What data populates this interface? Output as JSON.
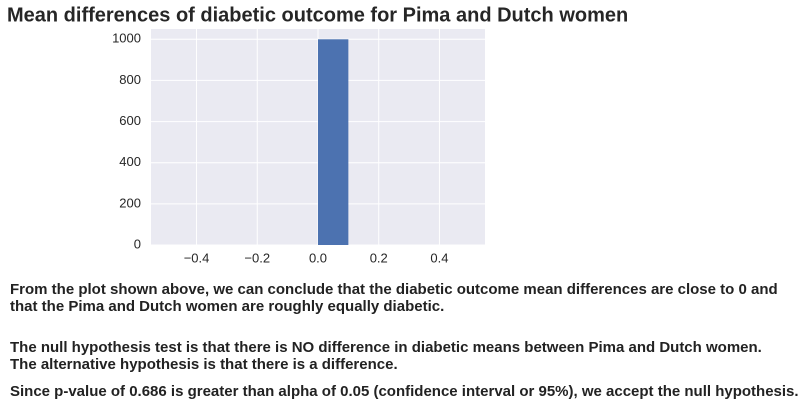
{
  "chart_data": {
    "type": "histogram",
    "title": "Mean differences of diabetic outcome for Pima and Dutch women",
    "bins": [
      -0.5,
      -0.4,
      -0.3,
      -0.2,
      -0.1,
      0.0,
      0.1,
      0.2,
      0.3,
      0.4,
      0.5
    ],
    "counts": [
      0,
      0,
      0,
      0,
      0,
      1000,
      0,
      0,
      0,
      0
    ],
    "color": "#4c72b0",
    "xlim": [
      -0.55,
      0.55
    ],
    "ylim": [
      0,
      1050
    ],
    "xticks": [
      {
        "value": -0.4,
        "label": "−0.4"
      },
      {
        "value": -0.2,
        "label": "−0.2"
      },
      {
        "value": 0,
        "label": "0.0"
      },
      0.2,
      0.4
    ],
    "yticks": [
      0,
      200,
      400,
      600,
      800,
      1000
    ],
    "grid": true
  },
  "text_lines": [
    [
      "From the plot shown above, we can conclude that the diabetic outcome mean differences are close to 0 and",
      "that the Pima and Dutch women are roughly equally diabetic."
    ],
    [
      "The null hypothesis test is that there is NO difference in diabetic means between Pima and Dutch women.",
      "The alternative hypothesis is that there is a difference."
    ],
    [
      "Since p-value of 0.686 is greater than alpha of 0.05 (confidence interval or 95%), we accept the null hypothesis."
    ]
  ]
}
